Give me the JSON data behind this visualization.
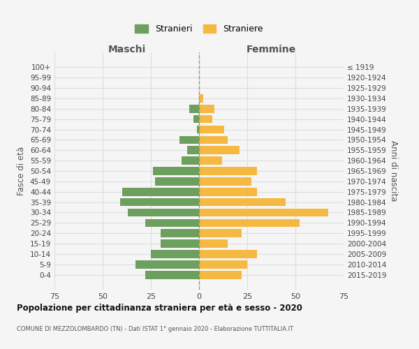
{
  "age_groups": [
    "0-4",
    "5-9",
    "10-14",
    "15-19",
    "20-24",
    "25-29",
    "30-34",
    "35-39",
    "40-44",
    "45-49",
    "50-54",
    "55-59",
    "60-64",
    "65-69",
    "70-74",
    "75-79",
    "80-84",
    "85-89",
    "90-94",
    "95-99",
    "100+"
  ],
  "birth_years": [
    "2015-2019",
    "2010-2014",
    "2005-2009",
    "2000-2004",
    "1995-1999",
    "1990-1994",
    "1985-1989",
    "1980-1984",
    "1975-1979",
    "1970-1974",
    "1965-1969",
    "1960-1964",
    "1955-1959",
    "1950-1954",
    "1945-1949",
    "1940-1944",
    "1935-1939",
    "1930-1934",
    "1925-1929",
    "1920-1924",
    "≤ 1919"
  ],
  "maschi": [
    28,
    33,
    25,
    20,
    20,
    28,
    37,
    41,
    40,
    23,
    24,
    9,
    6,
    10,
    1,
    3,
    5,
    0,
    0,
    0,
    0
  ],
  "femmine": [
    22,
    25,
    30,
    15,
    22,
    52,
    67,
    45,
    30,
    27,
    30,
    12,
    21,
    15,
    13,
    7,
    8,
    2,
    0,
    0,
    0
  ],
  "color_maschi": "#6d9f5e",
  "color_femmine": "#f5b942",
  "title": "Popolazione per cittadinanza straniera per età e sesso - 2020",
  "subtitle": "COMUNE DI MEZZOLOMBARDO (TN) - Dati ISTAT 1° gennaio 2020 - Elaborazione TUTTITALIA.IT",
  "xlabel_left": "Maschi",
  "xlabel_right": "Femmine",
  "ylabel_left": "Fasce di età",
  "ylabel_right": "Anni di nascita",
  "legend_maschi": "Stranieri",
  "legend_femmine": "Straniere",
  "xlim": 75,
  "background_color": "#f5f5f5",
  "grid_color": "#dddddd"
}
